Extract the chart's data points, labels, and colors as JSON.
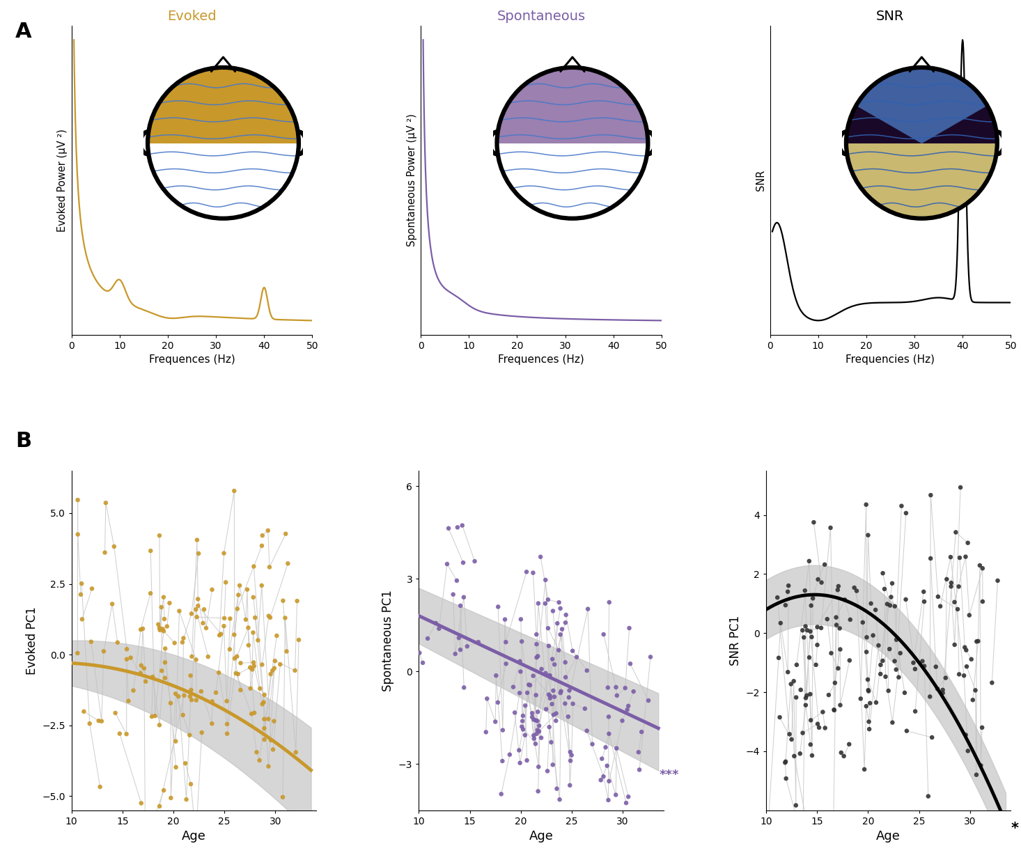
{
  "panel_A_title_evoked": "Evoked",
  "panel_A_title_spontaneous": "Spontaneous",
  "panel_A_title_snr": "SNR",
  "panel_A_xlabel": "Frequences (Hz)",
  "panel_A_xlabel_snr": "Frequencies (Hz)",
  "panel_A_ylabel_evoked": "Evoked Power (μV ²)",
  "panel_A_ylabel_spontaneous": "Spontaneous Power (μV ²)",
  "panel_A_ylabel_snr": "SNR",
  "evoked_color": "#C8982A",
  "spontaneous_color": "#7B5EA7",
  "snr_color": "#000000",
  "panel_B_xlabel": "Age",
  "panel_B_ylabel_evoked": "Evoked PC1",
  "panel_B_ylabel_spontaneous": "Spontaneous PC1",
  "panel_B_ylabel_snr": "SNR PC1",
  "panel_A_label": "A",
  "panel_B_label": "B",
  "background_color": "#ffffff",
  "scatter_line_color": "#c8c8c8",
  "ci_color": "#c0c0c0",
  "topo_evoked_top": "#C8982A",
  "topo_evoked_bottom": "#ffffff",
  "topo_spont_top": "#9B80B0",
  "topo_spont_bottom": "#ffffff",
  "topo_snr_top": "#1A0828",
  "topo_snr_mid": "#4060A0",
  "topo_snr_bottom": "#C8B870",
  "topo_line_color": "#4878C8",
  "topo_line_color_snr": "#3060B0"
}
